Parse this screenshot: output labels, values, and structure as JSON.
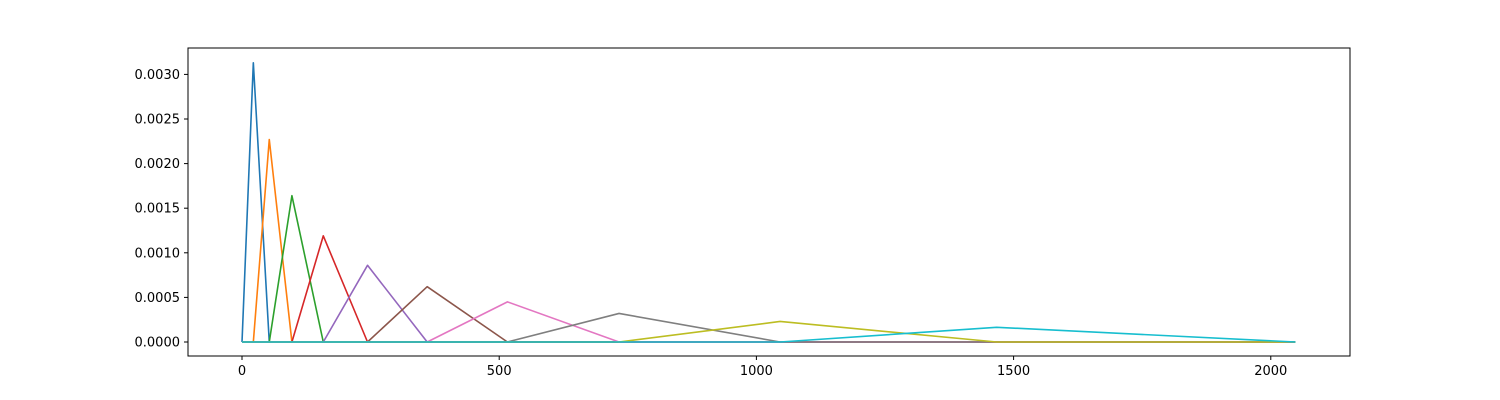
{
  "chart_data": {
    "type": "line",
    "title": "",
    "xlabel": "",
    "ylabel": "",
    "xlim": [
      -105,
      2154
    ],
    "ylim": [
      -0.000157,
      0.003296
    ],
    "xticks": [
      0,
      500,
      1000,
      1500,
      2000
    ],
    "xtick_labels": [
      "0",
      "500",
      "1000",
      "1500",
      "2000"
    ],
    "yticks": [
      0.0,
      0.0005,
      0.001,
      0.0015,
      0.002,
      0.0025,
      0.003
    ],
    "ytick_labels": [
      "0.0000",
      "0.0005",
      "0.0010",
      "0.0015",
      "0.0020",
      "0.0025",
      "0.0030"
    ],
    "grid": false,
    "legend": "none",
    "series": [
      {
        "color": "#1f77b4",
        "points": [
          [
            0,
            0
          ],
          [
            22,
            0.00313
          ],
          [
            53,
            0
          ],
          [
            2048,
            0
          ]
        ]
      },
      {
        "color": "#ff7f0e",
        "points": [
          [
            0,
            0
          ],
          [
            22,
            0
          ],
          [
            53,
            0.00227
          ],
          [
            97,
            0
          ],
          [
            2048,
            0
          ]
        ]
      },
      {
        "color": "#2ca02c",
        "points": [
          [
            0,
            0
          ],
          [
            53,
            0
          ],
          [
            97,
            0.00164
          ],
          [
            158,
            0
          ],
          [
            2048,
            0
          ]
        ]
      },
      {
        "color": "#d62728",
        "points": [
          [
            0,
            0
          ],
          [
            97,
            0
          ],
          [
            158,
            0.00119
          ],
          [
            244,
            0
          ],
          [
            2048,
            0
          ]
        ]
      },
      {
        "color": "#9467bd",
        "points": [
          [
            0,
            0
          ],
          [
            158,
            0
          ],
          [
            244,
            0.00086
          ],
          [
            360,
            0
          ],
          [
            2048,
            0
          ]
        ]
      },
      {
        "color": "#8c564b",
        "points": [
          [
            0,
            0
          ],
          [
            244,
            0
          ],
          [
            360,
            0.00062
          ],
          [
            516,
            0
          ],
          [
            2048,
            0
          ]
        ]
      },
      {
        "color": "#e377c2",
        "points": [
          [
            0,
            0
          ],
          [
            360,
            0
          ],
          [
            516,
            0.00045
          ],
          [
            733,
            0
          ],
          [
            2048,
            0
          ]
        ]
      },
      {
        "color": "#7f7f7f",
        "points": [
          [
            0,
            0
          ],
          [
            516,
            0
          ],
          [
            733,
            0.00032
          ],
          [
            1046,
            0
          ],
          [
            2048,
            0
          ]
        ]
      },
      {
        "color": "#bcbd22",
        "points": [
          [
            0,
            0
          ],
          [
            733,
            0
          ],
          [
            1046,
            0.00023
          ],
          [
            1467,
            0
          ],
          [
            2048,
            0
          ]
        ]
      },
      {
        "color": "#17becf",
        "points": [
          [
            0,
            0
          ],
          [
            1046,
            0
          ],
          [
            1467,
            0.000165
          ],
          [
            2048,
            0
          ]
        ]
      }
    ]
  }
}
